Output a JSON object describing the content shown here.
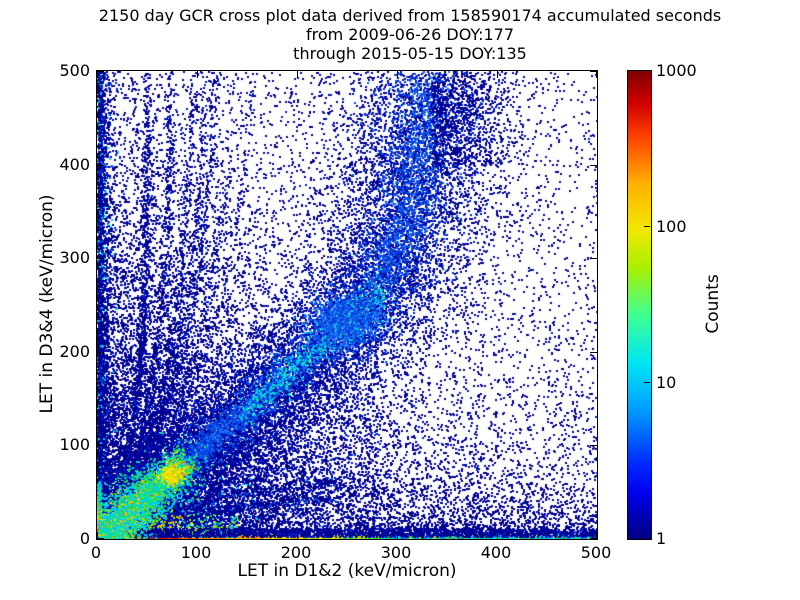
{
  "figure": {
    "title_line1": "2150 day GCR cross plot data derived from 158590174 accumulated seconds",
    "title_line2": "from 2009-06-26 DOY:177",
    "title_line3": "through 2015-05-15 DOY:135"
  },
  "chart_data": {
    "type": "heatmap",
    "title": "2150 day GCR cross plot data derived from 158590174 accumulated seconds",
    "subtitle": [
      "from 2009-06-26 DOY:177",
      "through 2015-05-15 DOY:135"
    ],
    "xlabel": "LET in D1&2 (keV/micron)",
    "ylabel": "LET in D3&4 (keV/micron)",
    "xlim": [
      0,
      500
    ],
    "ylim": [
      0,
      500
    ],
    "xticks": [
      0,
      100,
      200,
      300,
      400,
      500
    ],
    "yticks": [
      0,
      100,
      200,
      300,
      400,
      500
    ],
    "grid": false,
    "legend": "none",
    "colorbar": {
      "label": "Counts",
      "scale": "log",
      "min": 1,
      "max": 1000,
      "ticks": [
        1,
        10,
        100,
        1000
      ],
      "colormap": "jet",
      "position": "right"
    },
    "summary": "2D histogram of LET measured in detectors D1&2 vs D3&4. Hot (red, ~1000 counts) core at the origin and along the 1:1 diagonal out to ~(75,75); hot red/orange strip along y=0 fading to yellow/green/cyan by x=500; dense blue correlation band along y=x that steepens above (250,235) and becomes nearly vertical, reaching the top near x=330; fan of curved ion tracks rising from the origin toward vertical asymptotes near x=50,75,98,112,124,147; dense column at x<10; sparse single counts (dark blue) scattered over the remainder, density decreasing toward upper right.",
    "render": {
      "palette": {
        "navy": "#000092",
        "blue": "#0020cc",
        "blue2": "#0a50e8",
        "dodger": "#2277f0",
        "cyan": "#00ccee",
        "teal": "#00e8c0",
        "spring": "#20e060",
        "green": "#55d810",
        "ygreen": "#b0e400",
        "yellow": "#f6f000",
        "gold": "#ffc400",
        "orange": "#ff8800",
        "orangered": "#ff4800",
        "red": "#e41800",
        "darkred": "#8e0000"
      },
      "background": {
        "n_exp": 16000,
        "x_mean": 130,
        "y_mean": 170,
        "n_uniform": 2200,
        "n_right_mid": 800,
        "n_right_bottom": 1600,
        "right_bottom_ymean": 30
      },
      "left_column": {
        "n": 3200,
        "x_mean": 3.4,
        "x_max": 30,
        "y_pow": 1.15,
        "colors": [
          [
            "navy",
            0.75
          ],
          [
            "blue",
            0.12
          ],
          [
            "blue2",
            0.06
          ],
          [
            "cyan",
            0.07
          ]
        ],
        "hot_n": 700,
        "hot_bands": [
          [
            14,
            [
              [
                "red",
                0.6
              ],
              [
                "orangered",
                0.4
              ]
            ]
          ],
          [
            22,
            [
              [
                "orange",
                1
              ]
            ]
          ],
          [
            30,
            [
              [
                "gold",
                0.5
              ],
              [
                "yellow",
                0.5
              ]
            ]
          ],
          [
            40,
            [
              [
                "ygreen",
                0.6
              ],
              [
                "green",
                0.4
              ]
            ]
          ],
          [
            52,
            [
              [
                "spring",
                0.5
              ],
              [
                "cyan",
                0.5
              ]
            ]
          ],
          [
            62,
            [
              [
                "cyan",
                1
              ]
            ]
          ]
        ]
      },
      "tracks": [
        {
          "x": 50,
          "l": 100,
          "n": 1800
        },
        {
          "x": 75,
          "l": 130,
          "n": 1300
        },
        {
          "x": 98,
          "l": 150,
          "n": 1000
        },
        {
          "x": 112,
          "l": 160,
          "n": 850
        },
        {
          "x": 124,
          "l": 170,
          "n": 900
        },
        {
          "x": 147,
          "l": 185,
          "n": 650
        },
        {
          "x": 170,
          "l": 200,
          "n": 420
        }
      ],
      "mirror_tracks": [
        {
          "y": 50,
          "l": 120,
          "n": 900
        },
        {
          "y": 75,
          "l": 140,
          "n": 650
        }
      ],
      "band": {
        "path": [
          [
            0,
            0
          ],
          [
            70,
            65
          ],
          [
            140,
            130
          ],
          [
            210,
            196
          ],
          [
            250,
            232
          ],
          [
            282,
            272
          ],
          [
            302,
            318
          ],
          [
            315,
            375
          ],
          [
            325,
            440
          ],
          [
            332,
            500
          ]
        ],
        "sigma0": 7,
        "sigma1": 22,
        "layers": [
          {
            "n": 11000,
            "m": 1.8,
            "tmin": 0,
            "tmax": 1,
            "bias": 1.15,
            "colors": [
              [
                "navy",
                0.85
              ],
              [
                "blue",
                0.15
              ]
            ]
          },
          {
            "n": 5000,
            "m": 1.0,
            "tmin": 0,
            "tmax": 1,
            "bias": 1.25,
            "colors": [
              [
                "blue",
                0.6
              ],
              [
                "blue2",
                0.4
              ]
            ]
          },
          {
            "n": 2200,
            "m": 0.5,
            "tmin": 0.1,
            "tmax": 1,
            "bias": 1.3,
            "colors": [
              [
                "blue2",
                0.7
              ],
              [
                "dodger",
                0.3
              ]
            ]
          },
          {
            "n": 420,
            "m": 0.45,
            "tmin": 0.32,
            "tmax": 0.62,
            "bias": 1.0,
            "colors": [
              [
                "cyan",
                0.6
              ],
              [
                "teal",
                0.4
              ]
            ]
          }
        ]
      },
      "blob": {
        "x": 248,
        "y": 233,
        "sx": 17,
        "sy": 13,
        "n": 1600,
        "colors": [
          [
            "blue2",
            0.5
          ],
          [
            "dodger",
            0.3
          ],
          [
            "cyan",
            0.08
          ],
          [
            "blue",
            0.12
          ]
        ]
      },
      "top_tail": {
        "n": 700,
        "x0": 335,
        "spread": 38,
        "y0": 400
      },
      "hot_diag": {
        "rmax": 85,
        "bias": 1.35,
        "slope": 0.94,
        "layers": [
          {
            "n": 2000,
            "sigma": 1.6,
            "bands": [
              [
                52,
                [
                  [
                    "darkred",
                    0.6
                  ],
                  [
                    "red",
                    0.4
                  ]
                ]
              ],
              [
                72,
                [
                  [
                    "red",
                    0.55
                  ],
                  [
                    "orangered",
                    0.45
                  ]
                ]
              ],
              [
                85,
                [
                  [
                    "orange",
                    1
                  ]
                ]
              ]
            ]
          },
          {
            "n": 1700,
            "sigma": 4,
            "bands": [
              [
                60,
                [
                  [
                    "orangered",
                    0.5
                  ],
                  [
                    "orange",
                    0.5
                  ]
                ]
              ],
              [
                85,
                [
                  [
                    "orange",
                    0.6
                  ],
                  [
                    "gold",
                    0.4
                  ]
                ]
              ]
            ]
          },
          {
            "n": 1500,
            "sigma": 8,
            "bands": [
              [
                45,
                [
                  [
                    "gold",
                    0.5
                  ],
                  [
                    "ygreen",
                    0.5
                  ]
                ]
              ],
              [
                85,
                [
                  [
                    "ygreen",
                    0.5
                  ],
                  [
                    "spring",
                    0.5
                  ]
                ]
              ]
            ]
          },
          {
            "n": 1800,
            "sigma": 14,
            "bands": [
              [
                85,
                [
                  [
                    "spring",
                    0.4
                  ],
                  [
                    "cyan",
                    0.45
                  ],
                  [
                    "teal",
                    0.15
                  ]
                ]
              ]
            ]
          }
        ]
      },
      "yellow_blob": {
        "x": 74,
        "y": 69,
        "s": 4.5,
        "n": 420,
        "colors": [
          [
            "yellow",
            0.5
          ],
          [
            "gold",
            0.3
          ],
          [
            "ygreen",
            0.2
          ]
        ]
      },
      "corner": {
        "n": 2000,
        "r_mean": 13,
        "r_max": 62,
        "squash": 0.85,
        "bands": [
          [
            8,
            [
              [
                "darkred",
                0.5
              ],
              [
                "red",
                0.5
              ]
            ]
          ],
          [
            15,
            [
              [
                "orangered",
                0.7
              ],
              [
                "red",
                0.3
              ]
            ]
          ],
          [
            22,
            [
              [
                "orange",
                1
              ]
            ]
          ],
          [
            30,
            [
              [
                "gold",
                0.6
              ],
              [
                "yellow",
                0.4
              ]
            ]
          ],
          [
            40,
            [
              [
                "ygreen",
                0.6
              ],
              [
                "green",
                0.4
              ]
            ]
          ],
          [
            52,
            [
              [
                "spring",
                0.5
              ],
              [
                "cyan",
                0.5
              ]
            ]
          ],
          [
            62,
            [
              [
                "cyan",
                0.7
              ],
              [
                "blue2",
                0.3
              ]
            ]
          ]
        ]
      },
      "wedge": {
        "n": 5500,
        "x_max": 280,
        "fade": 320
      },
      "strip": {
        "zones": [
          {
            "xmax": 42,
            "colors": [
              [
                "darkred",
                1
              ]
            ]
          },
          {
            "xmax": 58,
            "colors": [
              [
                "darkred",
                0.5
              ],
              [
                "red",
                0.5
              ]
            ]
          },
          {
            "xmax": 80,
            "colors": [
              [
                "red",
                0.8
              ],
              [
                "orangered",
                0.2
              ]
            ]
          },
          {
            "xmax": 100,
            "colors": [
              [
                "orangered",
                0.8
              ],
              [
                "orange",
                0.2
              ]
            ]
          },
          {
            "xmax": 130,
            "colors": [
              [
                "orange",
                0.9
              ],
              [
                "orangered",
                0.1
              ]
            ]
          },
          {
            "xmax": 165,
            "colors": [
              [
                "orange",
                0.5
              ],
              [
                "gold",
                0.5
              ]
            ]
          },
          {
            "xmax": 205,
            "colors": [
              [
                "gold",
                0.6
              ],
              [
                "yellow",
                0.4
              ]
            ]
          },
          {
            "xmax": 245,
            "colors": [
              [
                "yellow",
                0.5
              ],
              [
                "ygreen",
                0.5
              ]
            ]
          },
          {
            "xmax": 285,
            "colors": [
              [
                "ygreen",
                0.4
              ],
              [
                "spring",
                0.35
              ],
              [
                "cyan",
                0.25
              ]
            ]
          },
          {
            "xmax": 500,
            "colors": [
              [
                "cyan",
                0.38
              ],
              [
                "spring",
                0.2
              ],
              [
                "green",
                0.1
              ],
              [
                "dodger",
                0.12
              ],
              [
                "yellow",
                0.05
              ],
              [
                "gold",
                0.04
              ],
              [
                "blue2",
                0.11
              ]
            ]
          }
        ]
      },
      "haze": {
        "n": 900
      },
      "navy_rows": {
        "n": 3600,
        "fade": 260
      }
    }
  }
}
